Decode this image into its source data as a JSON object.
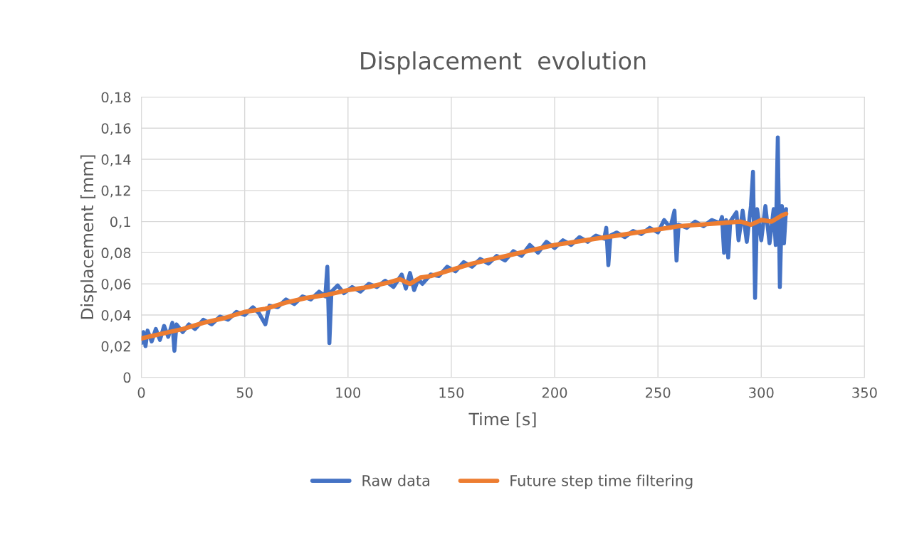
{
  "chart_data": {
    "type": "line",
    "title": "Displacement  evolution",
    "xlabel": "Time [s]",
    "ylabel": "Displacement [mm]",
    "xlim": [
      0,
      350
    ],
    "xticks": [
      0,
      50,
      100,
      150,
      200,
      250,
      300,
      350
    ],
    "ylim": [
      0,
      0.18
    ],
    "yticks": [
      0,
      {
        "value": 0.02,
        "label": "0,02"
      },
      {
        "value": 0.04,
        "label": "0,04"
      },
      {
        "value": 0.06,
        "label": "0,06"
      },
      {
        "value": 0.08,
        "label": "0,08"
      },
      {
        "value": 0.1,
        "label": "0,1"
      },
      {
        "value": 0.12,
        "label": "0,12"
      },
      {
        "value": 0.14,
        "label": "0,14"
      },
      {
        "value": 0.16,
        "label": "0,16"
      },
      {
        "value": 0.18,
        "label": "0,18"
      }
    ],
    "grid": true,
    "legend": "bottom",
    "marker": "none",
    "line_style": "solid",
    "series": [
      {
        "name": "Raw data",
        "color": "#4472c4",
        "x": [
          0,
          1,
          2,
          3,
          5,
          7,
          9,
          11,
          13,
          15,
          16,
          17,
          20,
          23,
          26,
          30,
          34,
          38,
          42,
          46,
          50,
          54,
          57,
          60,
          62,
          66,
          70,
          74,
          78,
          82,
          86,
          89,
          90,
          91,
          92,
          95,
          98,
          102,
          106,
          110,
          114,
          118,
          122,
          126,
          128,
          130,
          132,
          134,
          136,
          140,
          144,
          148,
          152,
          156,
          160,
          164,
          168,
          172,
          176,
          180,
          184,
          188,
          192,
          196,
          200,
          204,
          208,
          212,
          216,
          220,
          224,
          225,
          226,
          227,
          230,
          234,
          238,
          242,
          246,
          250,
          253,
          256,
          258,
          259,
          260,
          264,
          268,
          272,
          276,
          280,
          281,
          282,
          283,
          284,
          285,
          288,
          289,
          291,
          293,
          295,
          296,
          297,
          298,
          300,
          302,
          304,
          306,
          307,
          308,
          309,
          310,
          311,
          312
        ],
        "values": [
          0.022,
          0.029,
          0.02,
          0.03,
          0.023,
          0.031,
          0.024,
          0.033,
          0.026,
          0.035,
          0.017,
          0.034,
          0.029,
          0.034,
          0.031,
          0.037,
          0.034,
          0.039,
          0.037,
          0.042,
          0.04,
          0.045,
          0.041,
          0.034,
          0.046,
          0.045,
          0.05,
          0.047,
          0.052,
          0.05,
          0.055,
          0.052,
          0.071,
          0.022,
          0.055,
          0.059,
          0.054,
          0.058,
          0.055,
          0.06,
          0.058,
          0.062,
          0.058,
          0.066,
          0.057,
          0.067,
          0.056,
          0.063,
          0.06,
          0.066,
          0.065,
          0.071,
          0.068,
          0.074,
          0.071,
          0.076,
          0.073,
          0.078,
          0.075,
          0.081,
          0.078,
          0.085,
          0.08,
          0.087,
          0.083,
          0.088,
          0.085,
          0.09,
          0.087,
          0.091,
          0.089,
          0.096,
          0.072,
          0.091,
          0.093,
          0.09,
          0.094,
          0.092,
          0.096,
          0.093,
          0.101,
          0.096,
          0.107,
          0.075,
          0.098,
          0.096,
          0.1,
          0.097,
          0.101,
          0.099,
          0.103,
          0.08,
          0.101,
          0.077,
          0.1,
          0.106,
          0.088,
          0.107,
          0.087,
          0.11,
          0.132,
          0.051,
          0.108,
          0.088,
          0.11,
          0.086,
          0.108,
          0.085,
          0.154,
          0.058,
          0.11,
          0.086,
          0.108
        ]
      },
      {
        "name": "Future step time filtering",
        "color": "#ed7d31",
        "x": [
          0,
          10,
          20,
          30,
          40,
          50,
          60,
          70,
          80,
          90,
          100,
          110,
          120,
          125,
          130,
          135,
          140,
          150,
          160,
          170,
          180,
          190,
          200,
          210,
          220,
          230,
          240,
          250,
          260,
          270,
          280,
          290,
          295,
          300,
          305,
          310,
          312
        ],
        "values": [
          0.025,
          0.028,
          0.031,
          0.035,
          0.038,
          0.042,
          0.044,
          0.048,
          0.051,
          0.053,
          0.056,
          0.058,
          0.061,
          0.063,
          0.06,
          0.064,
          0.065,
          0.069,
          0.073,
          0.076,
          0.079,
          0.082,
          0.085,
          0.087,
          0.089,
          0.091,
          0.093,
          0.095,
          0.097,
          0.098,
          0.099,
          0.1,
          0.098,
          0.101,
          0.1,
          0.104,
          0.105
        ]
      }
    ]
  }
}
